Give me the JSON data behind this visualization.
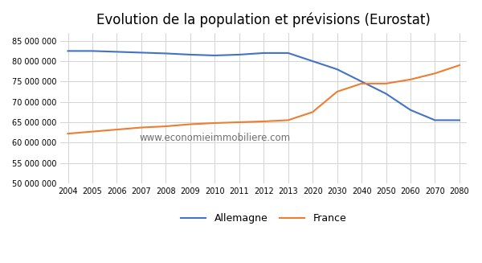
{
  "title": "Evolution de la population et prévisions (Eurostat)",
  "watermark": "www.economieimmobiliere.com",
  "xlabels": [
    "2004",
    "2005",
    "2006",
    "2007",
    "2008",
    "2009",
    "2010",
    "2011",
    "2012",
    "2013",
    "2020",
    "2030",
    "2040",
    "2050",
    "2060",
    "2070",
    "2080"
  ],
  "allemagne_y": [
    82500000,
    82500000,
    82300000,
    82100000,
    81900000,
    81600000,
    81400000,
    81600000,
    82000000,
    82000000,
    80000000,
    78000000,
    75000000,
    72000000,
    68000000,
    65500000,
    65500000
  ],
  "france_y": [
    62200000,
    62700000,
    63200000,
    63700000,
    64000000,
    64500000,
    64800000,
    65000000,
    65200000,
    65500000,
    67500000,
    72500000,
    74500000,
    74500000,
    75500000,
    77000000,
    79000000
  ],
  "allemagne_color": "#4472c4",
  "france_color": "#ed7d31",
  "background_color": "#ffffff",
  "grid_color": "#d3d3d3",
  "legend_labels": [
    "Allemagne",
    "France"
  ],
  "ylim": [
    50000000,
    87000000
  ],
  "yticks": [
    50000000,
    55000000,
    60000000,
    65000000,
    70000000,
    75000000,
    80000000,
    85000000
  ],
  "title_fontsize": 12,
  "tick_fontsize": 7,
  "legend_fontsize": 9,
  "watermark_fontsize": 8.5
}
